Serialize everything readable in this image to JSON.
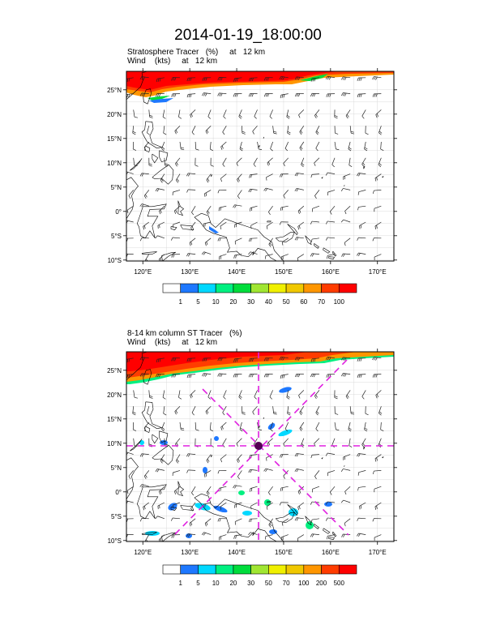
{
  "title": "2014-01-19_18:00:00",
  "panels": [
    {
      "id": "top",
      "subtitle_line1": "Stratosphere Tracer   (%)     at   12 km",
      "subtitle_line2": "Wind    (kts)     at   12 km",
      "lat_ticks": [
        "25°N",
        "20°N",
        "15°N",
        "10°N",
        "5°N",
        "0°",
        "5°S",
        "10°S"
      ],
      "lon_ticks": [
        "120°E",
        "130°E",
        "140°E",
        "150°E",
        "160°E",
        "170°E"
      ],
      "colorbar_labels": [
        "1",
        "5",
        "10",
        "20",
        "30",
        "40",
        "50",
        "60",
        "70",
        "100"
      ]
    },
    {
      "id": "bottom",
      "subtitle_line1": "8-14 km column ST Tracer   (%)",
      "subtitle_line2": "Wind    (kts)     at   12 km",
      "lat_ticks": [
        "25°N",
        "20°N",
        "15°N",
        "10°N",
        "5°N",
        "0°",
        "5°S",
        "10°S"
      ],
      "lon_ticks": [
        "120°E",
        "130°E",
        "140°E",
        "150°E",
        "160°E",
        "170°E"
      ],
      "colorbar_labels": [
        "1",
        "5",
        "10",
        "20",
        "30",
        "50",
        "70",
        "100",
        "200",
        "500"
      ]
    }
  ],
  "colorbar_colors": [
    "#ffffff",
    "#1e78ff",
    "#00d8ff",
    "#00f080",
    "#00dd3c",
    "#a0e632",
    "#f0f000",
    "#f0c800",
    "#ff9600",
    "#ff3c00",
    "#ff0000"
  ],
  "map_extent": {
    "lon_min": 116.5,
    "lon_max": 173.5,
    "lat_min": -10.2,
    "lat_max": 28.8
  }
}
